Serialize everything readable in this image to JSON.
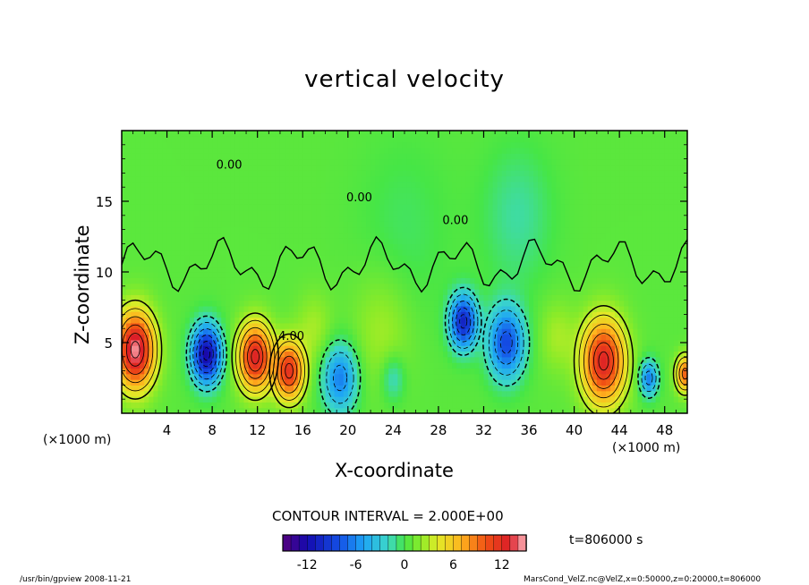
{
  "chart_data": {
    "type": "heatmap",
    "title": "vertical velocity",
    "xlabel": "X-coordinate",
    "ylabel": "Z-coordinate",
    "x_unit": "(×1000 m)",
    "z_unit": "(×1000 m)",
    "xlim": [
      0,
      50
    ],
    "ylim": [
      0,
      20
    ],
    "xticks": [
      4,
      8,
      12,
      16,
      20,
      24,
      28,
      32,
      36,
      40,
      44,
      48
    ],
    "yticks": [
      5,
      10,
      15
    ],
    "contour_interval": "CONTOUR INTERVAL = 2.000E+00",
    "colorbar": {
      "min": -15,
      "max": 15,
      "ticks": [
        -12,
        -6,
        0,
        6,
        12
      ]
    },
    "contour_labels": [
      "0.00",
      "0.00",
      "4.00",
      "0.00"
    ],
    "time_label": "t=806000 s",
    "cells": [
      {
        "x": 1.2,
        "z": 4.5,
        "w": 1.7,
        "v": 14
      },
      {
        "x": 7.5,
        "z": 4.2,
        "w": 1.3,
        "v": -13
      },
      {
        "x": 11.8,
        "z": 4.0,
        "w": 1.5,
        "v": 12
      },
      {
        "x": 14.8,
        "z": 3.0,
        "w": 1.3,
        "v": 11
      },
      {
        "x": 19.3,
        "z": 2.5,
        "w": 1.5,
        "v": -7
      },
      {
        "x": 24.0,
        "z": 2.5,
        "w": 1.0,
        "v": -3
      },
      {
        "x": 30.2,
        "z": 6.5,
        "w": 1.2,
        "v": -11
      },
      {
        "x": 34.0,
        "z": 5.0,
        "w": 1.6,
        "v": -9
      },
      {
        "x": 42.6,
        "z": 3.7,
        "w": 1.9,
        "v": 12
      },
      {
        "x": 46.6,
        "z": 2.5,
        "w": 0.8,
        "v": -7
      },
      {
        "x": 49.8,
        "z": 2.8,
        "w": 0.8,
        "v": 9
      },
      {
        "x": 23.0,
        "z": 6.0,
        "w": 2.6,
        "v": 2
      },
      {
        "x": 17.0,
        "z": 6.0,
        "w": 1.6,
        "v": 2
      },
      {
        "x": 38.5,
        "z": 5.5,
        "w": 1.6,
        "v": 2
      },
      {
        "x": 25.0,
        "z": 13.0,
        "w": 4.0,
        "v": -1
      },
      {
        "x": 35.0,
        "z": 14.0,
        "w": 3.0,
        "v": -2
      }
    ]
  },
  "footer": {
    "left": "/usr/bin/gpview  2008-11-21",
    "right": "MarsCond_VelZ.nc@VelZ,x=0:50000,z=0:20000,t=806000"
  }
}
